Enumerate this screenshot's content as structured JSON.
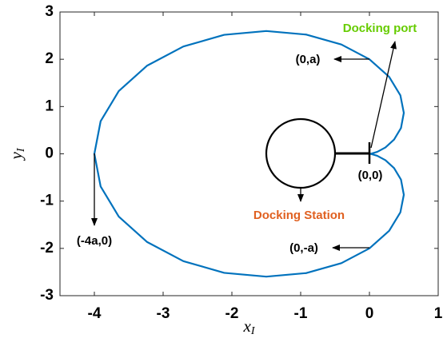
{
  "chart_data": {
    "type": "line",
    "xlabel": {
      "base": "x",
      "sub": "I"
    },
    "ylabel": {
      "base": "y",
      "sub": "I"
    },
    "xlim": [
      -4.5,
      1
    ],
    "ylim": [
      -3,
      3
    ],
    "xticks": [
      -4,
      -3,
      -2,
      -1,
      0,
      1
    ],
    "yticks": [
      -3,
      -2,
      -1,
      0,
      1,
      2,
      3
    ],
    "series": [
      {
        "color": "#0072bd",
        "x": [
          0,
          0.03,
          0.113,
          0.232,
          0.358,
          0.459,
          0.5,
          0.45,
          0.287,
          0,
          -0.408,
          -0.918,
          -1.5,
          -2.112,
          -2.706,
          -3.232,
          -3.645,
          -3.909,
          -4,
          -3.909,
          -3.645,
          -3.232,
          -2.706,
          -2.112,
          -1.5,
          -0.918,
          -0.408,
          0,
          0.287,
          0.45,
          0.5,
          0.459,
          0.358,
          0.232,
          0.113,
          0.03,
          0
        ],
        "values": [
          0,
          0.005,
          0.041,
          0.134,
          0.301,
          0.547,
          0.866,
          1.237,
          1.628,
          2,
          2.312,
          2.522,
          2.598,
          2.517,
          2.27,
          1.866,
          1.327,
          0.689,
          0,
          -0.689,
          -1.327,
          -1.866,
          -2.27,
          -2.517,
          -2.598,
          -2.522,
          -2.312,
          -2,
          -1.628,
          -1.237,
          -0.866,
          -0.547,
          -0.301,
          -0.134,
          -0.041,
          -0.005,
          0
        ]
      }
    ],
    "annotations": [
      {
        "text": "Docking port",
        "color": "#66cc00"
      },
      {
        "text": "(0,a)",
        "color": "#000000"
      },
      {
        "text": "(0,0)",
        "color": "#000000"
      },
      {
        "text": "Docking Station",
        "color": "#e06020"
      },
      {
        "text": "(-4a,0)",
        "color": "#000000"
      },
      {
        "text": "(0,-a)",
        "color": "#000000"
      }
    ]
  }
}
